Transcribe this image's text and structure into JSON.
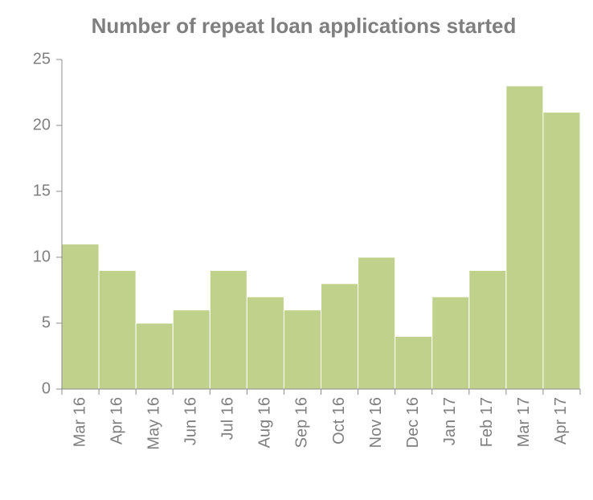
{
  "chart_data": {
    "type": "bar",
    "title": "Number of repeat loan applications started",
    "categories": [
      "Mar 16",
      "Apr 16",
      "May 16",
      "Jun 16",
      "Jul 16",
      "Aug 16",
      "Sep 16",
      "Oct 16",
      "Nov 16",
      "Dec 16",
      "Jan 17",
      "Feb 17",
      "Mar 17",
      "Apr 17"
    ],
    "values": [
      11,
      9,
      5,
      6,
      9,
      7,
      6,
      8,
      10,
      4,
      7,
      9,
      23,
      21
    ],
    "color": "#bfd18b",
    "ylim": [
      0,
      25
    ],
    "yticks": [
      0,
      5,
      10,
      15,
      20,
      25
    ],
    "grid": false
  }
}
